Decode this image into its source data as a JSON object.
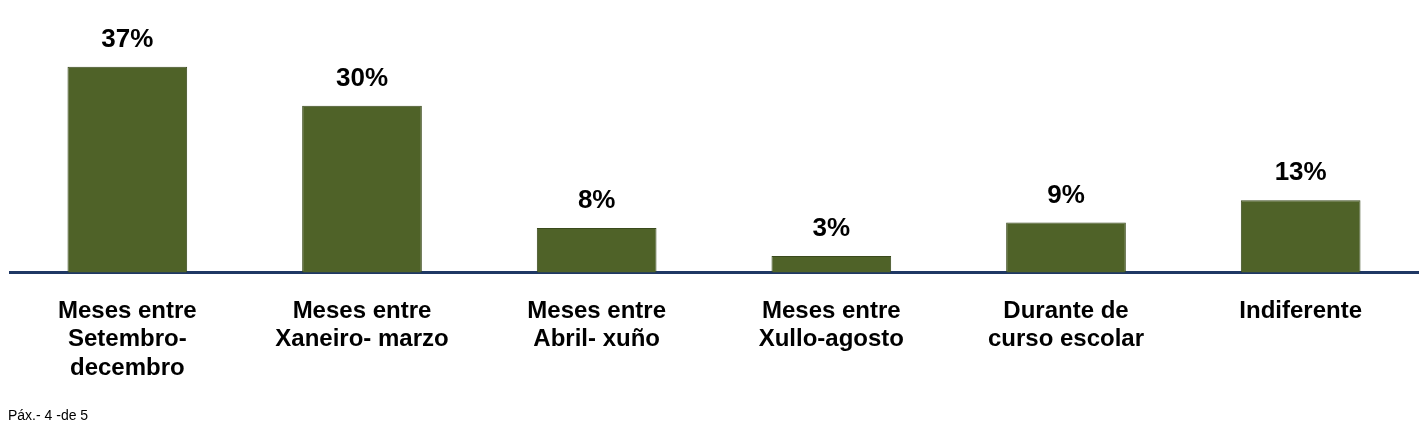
{
  "chart_data": {
    "type": "bar",
    "categories": [
      "Meses entre Setembro-decembro",
      "Meses entre Xaneiro- marzo",
      "Meses entre Abril- xuño",
      "Meses entre Xullo-agosto",
      "Durante de curso escolar",
      "Indiferente"
    ],
    "values": [
      37,
      30,
      8,
      3,
      9,
      13
    ],
    "value_labels": [
      "37%",
      "30%",
      "8%",
      "3%",
      "9%",
      "13%"
    ],
    "color": "#4f6228",
    "grid": false,
    "legend": false,
    "tick_labels": "x",
    "annotations": [
      "Páx.- 4 -de 5"
    ]
  }
}
